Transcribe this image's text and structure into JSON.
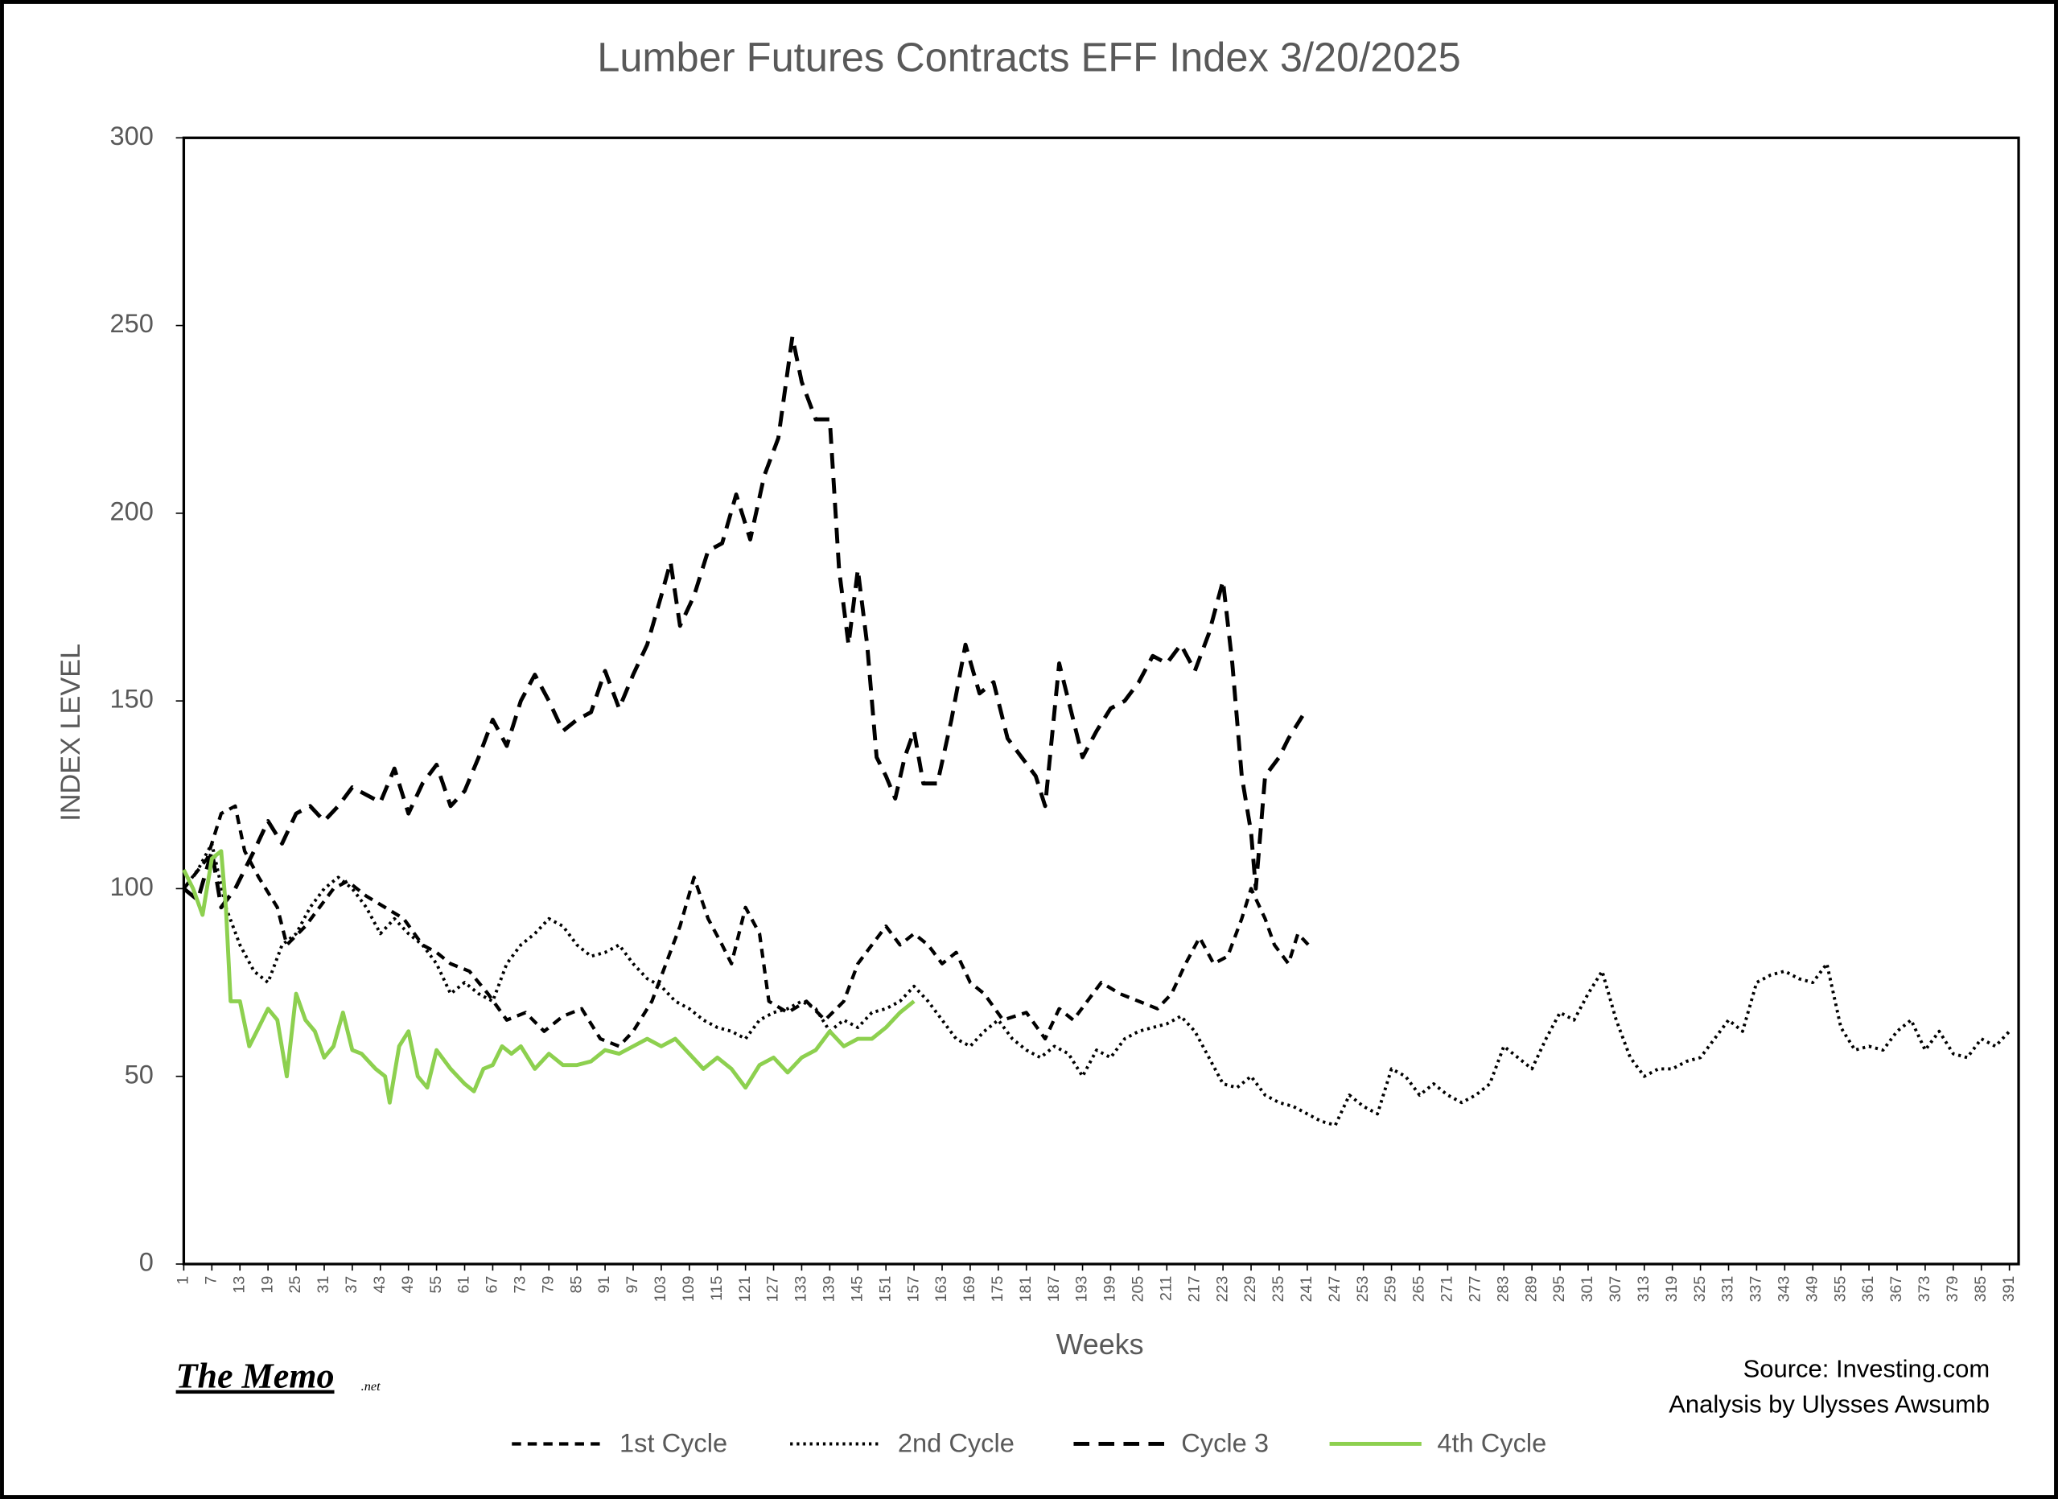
{
  "chart_data": {
    "type": "line",
    "title": "Lumber Futures Contracts  EFF Index 3/20/2025",
    "y_label": "INDEX LEVEL",
    "x_label": "Weeks",
    "source": "Source: Investing.com",
    "analysis": "Analysis by Ulysses Awsumb",
    "brand": "The Memo",
    "brand_suffix": ".net",
    "xlim": [
      1,
      391
    ],
    "ylim": [
      0,
      300
    ],
    "yticks": [
      0,
      50,
      100,
      150,
      200,
      250,
      300
    ],
    "xticks": [
      1,
      7,
      13,
      19,
      25,
      31,
      37,
      43,
      49,
      55,
      61,
      67,
      73,
      79,
      85,
      91,
      97,
      103,
      109,
      115,
      121,
      127,
      133,
      139,
      145,
      151,
      157,
      163,
      169,
      175,
      181,
      187,
      193,
      199,
      205,
      211,
      217,
      223,
      229,
      235,
      241,
      247,
      253,
      259,
      265,
      271,
      277,
      283,
      289,
      295,
      301,
      307,
      313,
      319,
      325,
      331,
      337,
      343,
      349,
      355,
      361,
      367,
      373,
      379,
      385,
      391
    ],
    "grid": false,
    "legend": "bottom",
    "series": [
      {
        "name": "1st Cycle",
        "color": "#000000",
        "x": [
          1,
          6,
          9,
          12,
          14,
          17,
          21,
          23,
          27,
          30,
          33,
          36,
          40,
          44,
          48,
          52,
          55,
          58,
          62,
          66,
          70,
          74,
          78,
          82,
          86,
          90,
          94,
          97,
          101,
          104,
          107,
          110,
          113,
          116,
          118,
          121,
          124,
          126,
          130,
          134,
          138,
          142,
          145,
          148,
          151,
          154,
          157,
          160,
          163,
          166,
          169,
          172,
          176,
          181,
          185,
          188,
          191,
          194,
          197,
          201,
          205,
          209,
          212,
          215,
          218,
          221,
          224,
          227,
          229,
          232,
          234,
          237,
          239,
          242
        ],
        "values": [
          100,
          108,
          120,
          122,
          110,
          103,
          95,
          85,
          90,
          95,
          100,
          102,
          98,
          95,
          92,
          85,
          83,
          80,
          78,
          72,
          65,
          67,
          62,
          66,
          68,
          60,
          58,
          62,
          70,
          80,
          90,
          103,
          92,
          85,
          80,
          95,
          88,
          70,
          67,
          70,
          65,
          70,
          80,
          85,
          90,
          85,
          88,
          85,
          80,
          83,
          75,
          72,
          65,
          67,
          60,
          68,
          65,
          70,
          75,
          72,
          70,
          68,
          72,
          80,
          87,
          80,
          82,
          92,
          100,
          92,
          85,
          80,
          88,
          84
        ]
      },
      {
        "name": "2nd Cycle",
        "color": "#000000",
        "x": [
          1,
          4,
          7,
          10,
          13,
          16,
          19,
          22,
          25,
          28,
          31,
          34,
          37,
          40,
          43,
          46,
          49,
          52,
          55,
          58,
          61,
          64,
          67,
          70,
          73,
          76,
          79,
          82,
          85,
          88,
          91,
          94,
          97,
          100,
          103,
          106,
          109,
          112,
          115,
          118,
          121,
          124,
          127,
          130,
          133,
          136,
          139,
          142,
          145,
          148,
          151,
          154,
          157,
          160,
          163,
          166,
          169,
          172,
          175,
          178,
          181,
          184,
          187,
          190,
          193,
          196,
          199,
          202,
          205,
          208,
          211,
          214,
          217,
          220,
          223,
          226,
          229,
          232,
          235,
          238,
          241,
          244,
          247,
          250,
          253,
          256,
          259,
          262,
          265,
          268,
          271,
          274,
          277,
          280,
          283,
          286,
          289,
          292,
          295,
          298,
          301,
          304,
          307,
          310,
          313,
          316,
          319,
          322,
          325,
          328,
          331,
          334,
          337,
          340,
          343,
          346,
          349,
          352,
          355,
          358,
          361,
          364,
          367,
          370,
          373,
          376,
          379,
          382,
          385,
          388,
          391
        ],
        "values": [
          100,
          105,
          112,
          95,
          85,
          78,
          75,
          85,
          88,
          95,
          100,
          103,
          100,
          95,
          88,
          92,
          88,
          85,
          80,
          72,
          75,
          72,
          70,
          80,
          85,
          88,
          92,
          90,
          85,
          82,
          83,
          85,
          80,
          76,
          74,
          70,
          68,
          65,
          63,
          62,
          60,
          65,
          67,
          68,
          70,
          68,
          62,
          65,
          63,
          67,
          68,
          70,
          74,
          70,
          65,
          60,
          58,
          62,
          65,
          60,
          57,
          55,
          58,
          56,
          50,
          57,
          55,
          60,
          62,
          63,
          64,
          66,
          62,
          55,
          48,
          47,
          50,
          45,
          43,
          42,
          40,
          38,
          37,
          45,
          42,
          40,
          52,
          50,
          45,
          48,
          45,
          43,
          45,
          48,
          58,
          55,
          52,
          60,
          67,
          65,
          72,
          78,
          65,
          55,
          50,
          52,
          52,
          54,
          55,
          60,
          65,
          62,
          75,
          77,
          78,
          76,
          75,
          80,
          63,
          57,
          58,
          57,
          62,
          65,
          57,
          62,
          56,
          55,
          60,
          58,
          62
        ]
      },
      {
        "name": "Cycle 3",
        "color": "#000000",
        "x": [
          1,
          4,
          7,
          9,
          12,
          16,
          19,
          22,
          25,
          28,
          31,
          34,
          37,
          40,
          43,
          46,
          49,
          52,
          55,
          58,
          61,
          64,
          67,
          70,
          73,
          76,
          79,
          82,
          85,
          88,
          91,
          94,
          97,
          100,
          103,
          105,
          107,
          110,
          113,
          116,
          119,
          122,
          125,
          128,
          131,
          133,
          136,
          139,
          141,
          143,
          145,
          147,
          149,
          151,
          153,
          155,
          157,
          159,
          162,
          165,
          168,
          171,
          174,
          177,
          180,
          183,
          185,
          188,
          191,
          193,
          196,
          199,
          202,
          205,
          208,
          211,
          214,
          217,
          220,
          223,
          225,
          227,
          229,
          230,
          232,
          235,
          237,
          240
        ],
        "values": [
          100,
          97,
          110,
          95,
          100,
          110,
          118,
          112,
          120,
          122,
          118,
          122,
          127,
          125,
          123,
          132,
          120,
          128,
          133,
          122,
          126,
          135,
          145,
          138,
          150,
          157,
          150,
          142,
          145,
          147,
          158,
          148,
          157,
          165,
          178,
          187,
          170,
          178,
          190,
          192,
          205,
          193,
          210,
          220,
          247,
          235,
          225,
          225,
          185,
          165,
          185,
          165,
          135,
          130,
          124,
          135,
          142,
          128,
          128,
          145,
          165,
          152,
          155,
          140,
          135,
          130,
          122,
          160,
          145,
          135,
          142,
          148,
          150,
          155,
          162,
          160,
          165,
          158,
          168,
          182,
          160,
          130,
          115,
          100,
          130,
          135,
          140,
          146
        ]
      },
      {
        "name": "4th Cycle",
        "color": "#8dd04f",
        "x": [
          1,
          3,
          5,
          7,
          9,
          10,
          11,
          13,
          15,
          17,
          19,
          21,
          23,
          25,
          27,
          29,
          31,
          33,
          35,
          37,
          39,
          42,
          44,
          45,
          47,
          49,
          51,
          53,
          55,
          58,
          61,
          63,
          65,
          67,
          69,
          71,
          73,
          76,
          79,
          82,
          85,
          88,
          91,
          94,
          97,
          100,
          103,
          106,
          109,
          112,
          115,
          118,
          121,
          124,
          127,
          130,
          133,
          136,
          139,
          142,
          145,
          148,
          151,
          154,
          157
        ],
        "values": [
          105,
          100,
          93,
          108,
          110,
          95,
          70,
          70,
          58,
          63,
          68,
          65,
          50,
          72,
          65,
          62,
          55,
          58,
          67,
          57,
          56,
          52,
          50,
          43,
          58,
          62,
          50,
          47,
          57,
          52,
          48,
          46,
          52,
          53,
          58,
          56,
          58,
          52,
          56,
          53,
          53,
          54,
          57,
          56,
          58,
          60,
          58,
          60,
          56,
          52,
          55,
          52,
          47,
          53,
          55,
          51,
          55,
          57,
          62,
          58,
          60,
          60,
          63,
          67,
          70
        ]
      }
    ]
  }
}
